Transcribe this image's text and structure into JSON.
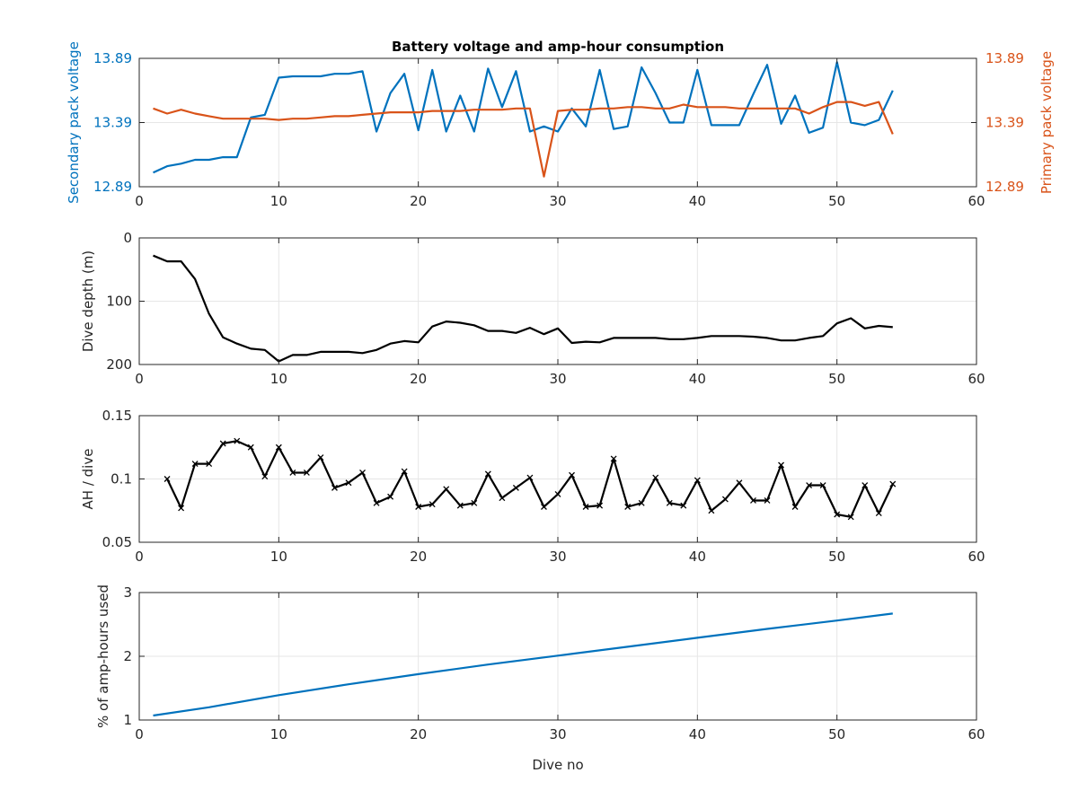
{
  "chart_data": [
    {
      "type": "line",
      "title": "Battery voltage and amp-hour consumption",
      "xlabel": "",
      "xlim": [
        0,
        60
      ],
      "x_ticks": [
        0,
        10,
        20,
        30,
        40,
        50,
        60
      ],
      "grid": true,
      "left_axis": {
        "ylabel": "Secondary pack voltage",
        "ylim": [
          12.89,
          13.89
        ],
        "ticks": [
          12.89,
          13.39,
          13.89
        ],
        "tick_labels": [
          "12.89",
          "13.39",
          "13.89"
        ],
        "color": "#0072bd"
      },
      "right_axis": {
        "ylabel": "Primary pack voltage",
        "ylim": [
          12.89,
          13.89
        ],
        "ticks": [
          12.89,
          13.39,
          13.89
        ],
        "tick_labels": [
          "12.89",
          "13.39",
          "13.89"
        ],
        "color": "#d95319"
      },
      "series": [
        {
          "axis": "left",
          "color": "#0072bd",
          "x": [
            1,
            2,
            3,
            4,
            5,
            6,
            7,
            8,
            9,
            10,
            11,
            12,
            13,
            14,
            15,
            16,
            17,
            18,
            19,
            20,
            21,
            22,
            23,
            24,
            25,
            26,
            27,
            28,
            29,
            30,
            31,
            32,
            33,
            34,
            35,
            36,
            37,
            38,
            39,
            40,
            41,
            42,
            43,
            44,
            45,
            46,
            47,
            48,
            49,
            50,
            51,
            52,
            53,
            54
          ],
          "y": [
            13.0,
            13.05,
            13.07,
            13.1,
            13.1,
            13.12,
            13.12,
            13.43,
            13.45,
            13.74,
            13.75,
            13.75,
            13.75,
            13.77,
            13.77,
            13.79,
            13.32,
            13.62,
            13.77,
            13.33,
            13.8,
            13.32,
            13.6,
            13.32,
            13.81,
            13.51,
            13.79,
            13.32,
            13.36,
            13.32,
            13.5,
            13.36,
            13.8,
            13.34,
            13.36,
            13.82,
            13.62,
            13.39,
            13.39,
            13.8,
            13.37,
            13.37,
            13.37,
            13.61,
            13.84,
            13.38,
            13.6,
            13.31,
            13.35,
            13.86,
            13.39,
            13.37,
            13.41,
            13.64
          ]
        },
        {
          "axis": "right",
          "color": "#d95319",
          "x": [
            1,
            2,
            3,
            4,
            5,
            6,
            7,
            8,
            9,
            10,
            11,
            12,
            13,
            14,
            15,
            16,
            17,
            18,
            19,
            20,
            21,
            22,
            23,
            24,
            25,
            26,
            27,
            28,
            29,
            30,
            31,
            32,
            33,
            34,
            35,
            36,
            37,
            38,
            39,
            40,
            41,
            42,
            43,
            44,
            45,
            46,
            47,
            48,
            49,
            50,
            51,
            52,
            53,
            54
          ],
          "y": [
            13.5,
            13.46,
            13.49,
            13.46,
            13.44,
            13.42,
            13.42,
            13.42,
            13.42,
            13.41,
            13.42,
            13.42,
            13.43,
            13.44,
            13.44,
            13.45,
            13.46,
            13.47,
            13.47,
            13.47,
            13.48,
            13.48,
            13.48,
            13.49,
            13.49,
            13.49,
            13.5,
            13.5,
            12.97,
            13.48,
            13.49,
            13.49,
            13.5,
            13.5,
            13.51,
            13.51,
            13.5,
            13.5,
            13.53,
            13.51,
            13.51,
            13.51,
            13.5,
            13.5,
            13.5,
            13.5,
            13.5,
            13.46,
            13.51,
            13.55,
            13.55,
            13.52,
            13.55,
            13.3
          ]
        }
      ]
    },
    {
      "type": "line",
      "title": "",
      "xlabel": "",
      "ylabel": "Dive depth (m)",
      "xlim": [
        0,
        60
      ],
      "ylim": [
        0,
        200
      ],
      "y_reversed": true,
      "x_ticks": [
        0,
        10,
        20,
        30,
        40,
        50,
        60
      ],
      "y_ticks": [
        0,
        100,
        200
      ],
      "grid": true,
      "series": [
        {
          "color": "#000000",
          "x": [
            1,
            2,
            3,
            4,
            5,
            6,
            7,
            8,
            9,
            10,
            11,
            12,
            13,
            14,
            15,
            16,
            17,
            18,
            19,
            20,
            21,
            22,
            23,
            24,
            25,
            26,
            27,
            28,
            29,
            30,
            31,
            32,
            33,
            34,
            35,
            36,
            37,
            38,
            39,
            40,
            41,
            42,
            43,
            44,
            45,
            46,
            47,
            48,
            49,
            50,
            51,
            52,
            53,
            54
          ],
          "y": [
            28,
            37,
            37,
            65,
            120,
            157,
            167,
            175,
            177,
            195,
            185,
            185,
            180,
            180,
            180,
            182,
            177,
            167,
            163,
            165,
            140,
            132,
            134,
            138,
            147,
            147,
            150,
            142,
            152,
            143,
            166,
            164,
            165,
            158,
            158,
            158,
            158,
            160,
            160,
            158,
            155,
            155,
            155,
            156,
            158,
            162,
            162,
            158,
            155,
            135,
            127,
            143,
            139,
            141
          ]
        }
      ]
    },
    {
      "type": "line",
      "title": "",
      "xlabel": "",
      "ylabel": "AH / dive",
      "xlim": [
        0,
        60
      ],
      "ylim": [
        0.05,
        0.15
      ],
      "x_ticks": [
        0,
        10,
        20,
        30,
        40,
        50,
        60
      ],
      "y_ticks": [
        0.05,
        0.1,
        0.15
      ],
      "y_tick_labels": [
        "0.05",
        "0.1",
        "0.15"
      ],
      "grid": true,
      "markers": "x",
      "series": [
        {
          "color": "#000000",
          "x": [
            2,
            3,
            4,
            5,
            6,
            7,
            8,
            9,
            10,
            11,
            12,
            13,
            14,
            15,
            16,
            17,
            18,
            19,
            20,
            21,
            22,
            23,
            24,
            25,
            26,
            27,
            28,
            29,
            30,
            31,
            32,
            33,
            34,
            35,
            36,
            37,
            38,
            39,
            40,
            41,
            42,
            43,
            44,
            45,
            46,
            47,
            48,
            49,
            50,
            51,
            52,
            53,
            54
          ],
          "y": [
            0.1,
            0.077,
            0.112,
            0.112,
            0.128,
            0.13,
            0.125,
            0.102,
            0.125,
            0.105,
            0.105,
            0.117,
            0.093,
            0.097,
            0.105,
            0.081,
            0.086,
            0.106,
            0.078,
            0.08,
            0.092,
            0.079,
            0.081,
            0.104,
            0.085,
            0.093,
            0.101,
            0.078,
            0.088,
            0.103,
            0.078,
            0.079,
            0.116,
            0.078,
            0.081,
            0.101,
            0.081,
            0.079,
            0.099,
            0.075,
            0.084,
            0.097,
            0.083,
            0.083,
            0.111,
            0.078,
            0.095,
            0.095,
            0.072,
            0.07,
            0.095,
            0.073,
            0.096
          ]
        }
      ]
    },
    {
      "type": "line",
      "title": "",
      "xlabel": "Dive no",
      "ylabel": "% of amp-hours used",
      "xlim": [
        0,
        60
      ],
      "ylim": [
        1,
        3
      ],
      "x_ticks": [
        0,
        10,
        20,
        30,
        40,
        50,
        60
      ],
      "y_ticks": [
        1,
        2,
        3
      ],
      "grid": true,
      "series": [
        {
          "color": "#0072bd",
          "x": [
            1,
            5,
            10,
            15,
            20,
            25,
            30,
            35,
            40,
            45,
            50,
            54
          ],
          "y": [
            1.07,
            1.2,
            1.39,
            1.56,
            1.72,
            1.87,
            2.01,
            2.15,
            2.29,
            2.43,
            2.56,
            2.67
          ]
        }
      ]
    }
  ]
}
